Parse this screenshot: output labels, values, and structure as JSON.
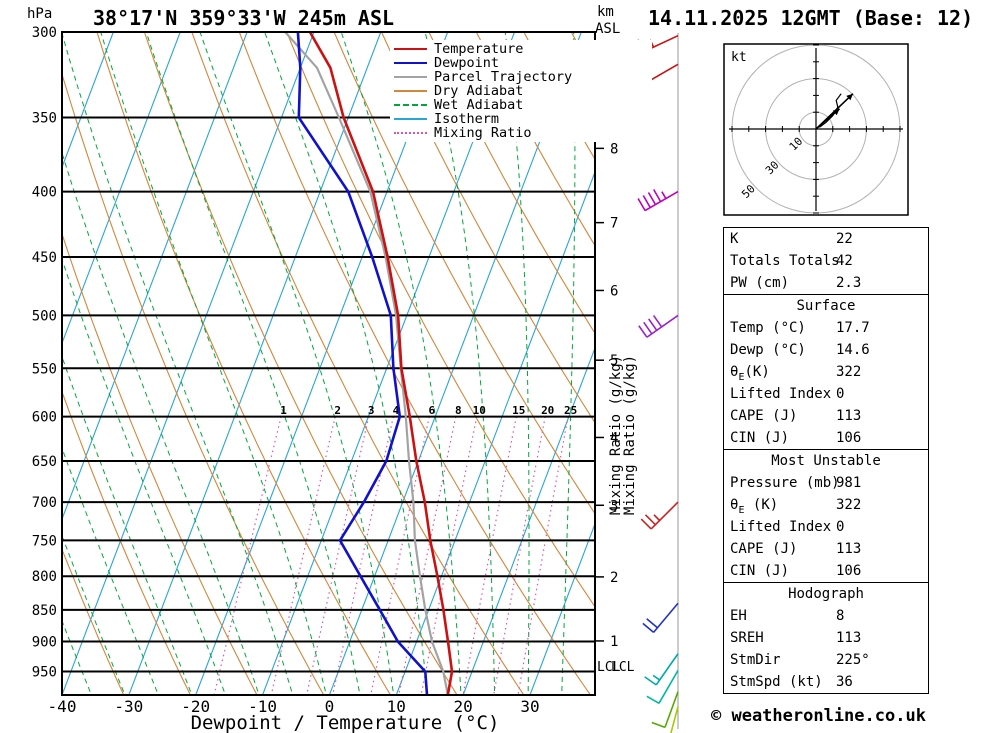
{
  "header": {
    "station_title": "38°17'N 359°33'W 245m ASL",
    "datetime_title": "14.11.2025 12GMT (Base: 12)",
    "pressure_unit": "hPa",
    "altitude_unit": "km",
    "altitude_unit2": "ASL"
  },
  "axes": {
    "xlabel": "Dewpoint / Temperature (°C)",
    "mixing_ratio_label": "Mixing Ratio (g/kg)",
    "lcl_label": "LCL",
    "pressure_ticks_hpa": [
      300,
      350,
      400,
      450,
      500,
      550,
      600,
      650,
      700,
      750,
      800,
      850,
      900,
      950
    ],
    "temp_ticks_c": [
      -40,
      -30,
      -20,
      -10,
      0,
      10,
      20,
      30
    ],
    "km_ticks": [
      {
        "km": 8,
        "p_hpa": 370
      },
      {
        "km": 7,
        "p_hpa": 423
      },
      {
        "km": 6,
        "p_hpa": 478
      },
      {
        "km": 5,
        "p_hpa": 542
      },
      {
        "km": 4,
        "p_hpa": 623
      },
      {
        "km": 3,
        "p_hpa": 704
      },
      {
        "km": 2,
        "p_hpa": 801
      },
      {
        "km": 1,
        "p_hpa": 899
      }
    ]
  },
  "legend": {
    "items": [
      {
        "label": "Temperature",
        "color": "#cc1111",
        "dash": "solid"
      },
      {
        "label": "Dewpoint",
        "color": "#1111cc",
        "dash": "solid"
      },
      {
        "label": "Parcel Trajectory",
        "color": "#a3a3a3",
        "dash": "solid"
      },
      {
        "label": "Dry Adiabat",
        "color": "#d2873b",
        "dash": "solid"
      },
      {
        "label": "Wet Adiabat",
        "color": "#00a83c",
        "dash": "dashed"
      },
      {
        "label": "Isotherm",
        "color": "#2aa5d5",
        "dash": "solid"
      },
      {
        "label": "Mixing Ratio",
        "color": "#dd55aa",
        "dash": "dotted"
      }
    ]
  },
  "chart_data": {
    "type": "line",
    "variant": "skew-t log-p sounding",
    "pressure_lim_hpa": [
      300,
      991
    ],
    "surface_temp_axis_c": [
      -40,
      40
    ],
    "pressure_hpa": [
      991,
      950,
      900,
      850,
      800,
      750,
      700,
      650,
      600,
      550,
      500,
      450,
      400,
      350,
      320,
      300
    ],
    "series": [
      {
        "name": "Temperature",
        "values": [
          17.7,
          17.0,
          14.7,
          12.2,
          9.4,
          6.3,
          3.3,
          -0.3,
          -3.8,
          -7.8,
          -11.3,
          -16.2,
          -22.1,
          -30.7,
          -35.5,
          -40.6
        ]
      },
      {
        "name": "Dewpoint",
        "values": [
          14.6,
          13.0,
          7.2,
          2.7,
          -2.1,
          -7.2,
          -5.8,
          -4.8,
          -5.3,
          -9.0,
          -12.4,
          -18.5,
          -25.8,
          -37.4,
          -40.0,
          -42.4
        ]
      },
      {
        "name": "Parcel Trajectory",
        "values": [
          17.7,
          15.7,
          12.3,
          9.5,
          6.8,
          4.0,
          1.6,
          -1.4,
          -4.4,
          -7.9,
          -11.6,
          -16.5,
          -22.5,
          -31.4,
          -37.5,
          -44.3
        ]
      }
    ],
    "isotherms_c": {
      "min": -120,
      "max": 40,
      "step": 10
    },
    "dry_adiabats_theta_k": {
      "min": 223,
      "max": 443,
      "step": 10
    },
    "wet_adiabats_start_c": {
      "min": -60,
      "max": 40,
      "step": 5
    },
    "mixing_ratio_g_kg": [
      1,
      2,
      3,
      4,
      6,
      8,
      10,
      15,
      20,
      25
    ],
    "lcl_pressure_hpa": 940,
    "wind_barbs": [
      {
        "p_hpa": 302,
        "speed_kt": 55,
        "dir_deg": 245,
        "color": "#cc1111"
      },
      {
        "p_hpa": 318,
        "speed_kt": 50,
        "dir_deg": 240,
        "color": "#cc1111"
      },
      {
        "p_hpa": 400,
        "speed_kt": 45,
        "dir_deg": 240,
        "color": "#bb00bb"
      },
      {
        "p_hpa": 500,
        "speed_kt": 40,
        "dir_deg": 235,
        "color": "#9922cc"
      },
      {
        "p_hpa": 700,
        "speed_kt": 25,
        "dir_deg": 225,
        "color": "#cc2222"
      },
      {
        "p_hpa": 840,
        "speed_kt": 20,
        "dir_deg": 220,
        "color": "#2233bb"
      },
      {
        "p_hpa": 920,
        "speed_kt": 15,
        "dir_deg": 215,
        "color": "#00aaaa"
      },
      {
        "p_hpa": 948,
        "speed_kt": 12,
        "dir_deg": 210,
        "color": "#00b8a0"
      },
      {
        "p_hpa": 985,
        "speed_kt": 10,
        "dir_deg": 200,
        "color": "#55aa00"
      },
      {
        "p_hpa": 1012,
        "speed_kt": 8,
        "dir_deg": 195,
        "color": "#a8c800"
      }
    ]
  },
  "hodograph": {
    "unit_label": "kt",
    "rings_kt": [
      10,
      30,
      50
    ],
    "arrows_kt": [
      {
        "u": 14,
        "v": 12
      },
      {
        "u": 22,
        "v": 21
      }
    ],
    "trace_kt": [
      [
        2,
        1
      ],
      [
        6,
        4
      ],
      [
        10,
        8
      ],
      [
        13,
        13
      ],
      [
        12,
        17
      ],
      [
        15,
        21
      ]
    ]
  },
  "table": {
    "sections": [
      {
        "header": null,
        "rows": [
          [
            "K",
            "22"
          ],
          [
            "Totals Totals",
            "42"
          ],
          [
            "PW (cm)",
            "2.3"
          ]
        ]
      },
      {
        "header": "Surface",
        "rows": [
          [
            "Temp (°C)",
            "17.7"
          ],
          [
            "Dewp (°C)",
            "14.6"
          ],
          [
            "θE(K)",
            "322"
          ],
          [
            "Lifted Index",
            "0"
          ],
          [
            "CAPE (J)",
            "113"
          ],
          [
            "CIN (J)",
            "106"
          ]
        ]
      },
      {
        "header": "Most Unstable",
        "rows": [
          [
            "Pressure (mb)",
            "981"
          ],
          [
            "θE (K)",
            "322"
          ],
          [
            "Lifted Index",
            "0"
          ],
          [
            "CAPE (J)",
            "113"
          ],
          [
            "CIN (J)",
            "106"
          ]
        ]
      },
      {
        "header": "Hodograph",
        "rows": [
          [
            "EH",
            "8"
          ],
          [
            "SREH",
            "113"
          ],
          [
            "StmDir",
            "225°"
          ],
          [
            "StmSpd (kt)",
            "36"
          ]
        ]
      }
    ]
  },
  "footer": {
    "copyright": "© weatheronline.co.uk"
  },
  "colors": {
    "temperature": "#cc1111",
    "dewpoint": "#1111cc",
    "parcel": "#a3a3a3",
    "dry_adiabat": "#d2873b",
    "wet_adiabat": "#00a83c",
    "isotherm": "#2aa5d5",
    "mixing_ratio": "#dd55aa",
    "grid": "#000000",
    "barb_axis": "#999999"
  }
}
